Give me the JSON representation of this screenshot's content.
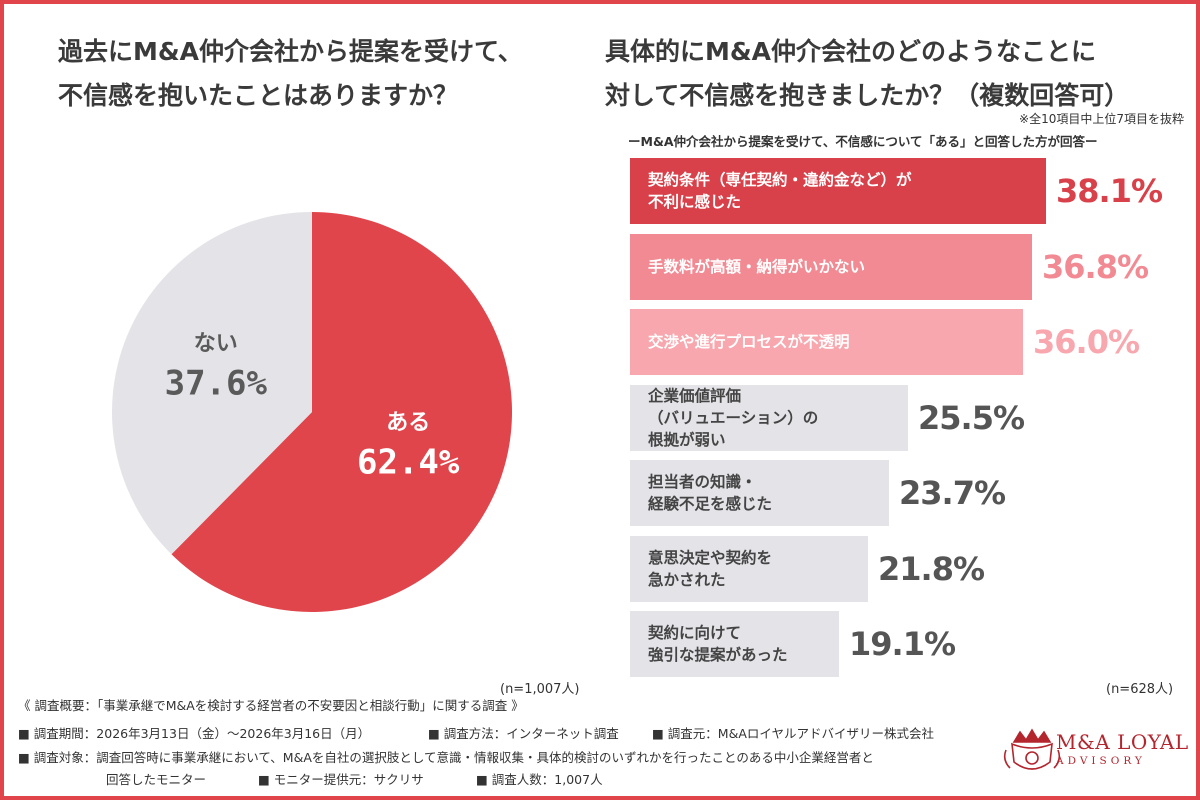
{
  "left": {
    "title_line1": "過去にM&A仲介会社から提案を受けて、",
    "title_line2": "不信感を抱いたことはありますか？",
    "n": "(n=1,007人)"
  },
  "right": {
    "title_line1": "具体的にM&A仲介会社のどのようなことに",
    "title_line2": "対して不信感を抱きましたか？（複数回答可）",
    "note": "※全10項目中上位7項目を抜粋",
    "subhead": "ーM&A仲介会社から提案を受けて、不信感について「ある」と回答した方が回答ー",
    "n": "(n=628人)"
  },
  "chart_data": [
    {
      "type": "pie",
      "title": "過去にM&A仲介会社から提案を受けて、不信感を抱いたことはありますか？",
      "slices": [
        {
          "label": "ある",
          "value": 62.4,
          "value_label": "62.4%",
          "color": "#e0454c"
        },
        {
          "label": "ない",
          "value": 37.6,
          "value_label": "37.6%",
          "color": "#e4e3e8"
        }
      ]
    },
    {
      "type": "bar",
      "orientation": "horizontal",
      "title": "具体的にM&A仲介会社のどのようなことに対して不信感を抱きましたか？（複数回答可）",
      "xlim": [
        0,
        38.1
      ],
      "categories": [
        "契約条件（専任契約・違約金など）が\n不利に感じた",
        "手数料が高額・納得がいかない",
        "交渉や進行プロセスが不透明",
        "企業価値評価\n（バリュエーション）の\n根拠が弱い",
        "担当者の知識・\n経験不足を感じた",
        "意思決定や契約を\n急かされた",
        "契約に向けて\n強引な提案があった"
      ],
      "values": [
        38.1,
        36.8,
        36.0,
        25.5,
        23.7,
        21.8,
        19.1
      ],
      "value_labels": [
        "38.1%",
        "36.8%",
        "36.0%",
        "25.5%",
        "23.7%",
        "21.8%",
        "19.1%"
      ],
      "bar_colors": [
        "#d8404a",
        "#f28a93",
        "#f7a7ad",
        "#e4e3e8",
        "#e4e3e8",
        "#e4e3e8",
        "#e4e3e8"
      ],
      "label_colors": [
        "#d8404a",
        "#f28a93",
        "#f7a7ad",
        "#555555",
        "#555555",
        "#555555",
        "#555555"
      ]
    }
  ],
  "footer": {
    "line1": "《 調査概要：「事業承継でM&Aを検討する経営者の不安要因と相談行動」に関する調査 》",
    "period": "■ 調査期間：2026年3月13日（金）〜2026年3月16日（月）",
    "method": "■ 調査方法：インターネット調査",
    "source": "■ 調査元：M&Aロイヤルアドバイザリー株式会社",
    "target_line1": "■ 調査対象：調査回答時に事業承継において、M&Aを自社の選択肢として意識・情報収集・具体的検討のいずれかを行ったことのある中小企業経営者と",
    "target_line2": "回答したモニター",
    "provider": "■ モニター提供元：サクリサ",
    "count": "■ 調査人数：1,007人"
  },
  "logo": {
    "name": "M&A LOYAL",
    "sub": "ADVISORY",
    "color": "#b3262e"
  }
}
